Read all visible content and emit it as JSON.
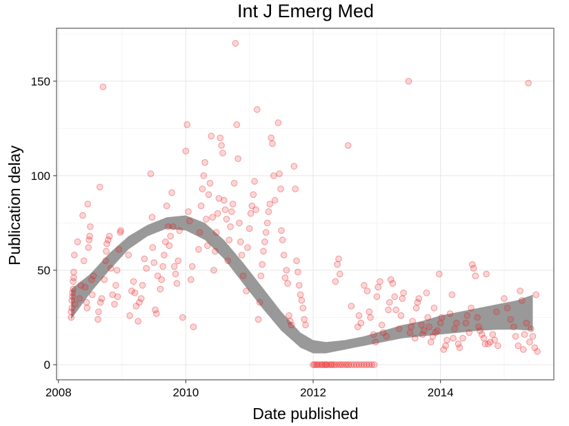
{
  "chart_data": {
    "type": "scatter",
    "title": "Int J Emerg Med",
    "xlabel": "Date published",
    "ylabel": "Publication delay",
    "xlim": [
      2007.97,
      2015.78
    ],
    "ylim": [
      -8,
      178
    ],
    "xticks": [
      2008,
      2010,
      2012,
      2014
    ],
    "xtick_labels": [
      "2008",
      "2010",
      "2012",
      "2014"
    ],
    "yticks": [
      0,
      50,
      100,
      150
    ],
    "ytick_labels": [
      "0",
      "50",
      "100",
      "150"
    ],
    "grid": true,
    "point_color": "#e8191c",
    "point_opacity": 0.18,
    "band_color": "#999999",
    "points": [
      [
        2008.2,
        25
      ],
      [
        2008.2,
        28
      ],
      [
        2008.21,
        30
      ],
      [
        2008.21,
        34
      ],
      [
        2008.22,
        36
      ],
      [
        2008.22,
        38
      ],
      [
        2008.23,
        40
      ],
      [
        2008.23,
        44
      ],
      [
        2008.24,
        46
      ],
      [
        2008.24,
        49
      ],
      [
        2008.25,
        58
      ],
      [
        2008.26,
        32
      ],
      [
        2008.3,
        65
      ],
      [
        2008.33,
        35
      ],
      [
        2008.35,
        42
      ],
      [
        2008.38,
        79
      ],
      [
        2008.4,
        55
      ],
      [
        2008.42,
        41
      ],
      [
        2008.44,
        33
      ],
      [
        2008.45,
        30
      ],
      [
        2008.46,
        85
      ],
      [
        2008.47,
        62
      ],
      [
        2008.48,
        66
      ],
      [
        2008.49,
        68
      ],
      [
        2008.5,
        73
      ],
      [
        2008.52,
        45
      ],
      [
        2008.53,
        37
      ],
      [
        2008.55,
        47
      ],
      [
        2008.62,
        24
      ],
      [
        2008.63,
        28
      ],
      [
        2008.65,
        94
      ],
      [
        2008.66,
        33
      ],
      [
        2008.68,
        35
      ],
      [
        2008.7,
        147
      ],
      [
        2008.72,
        45
      ],
      [
        2008.74,
        55
      ],
      [
        2008.75,
        60
      ],
      [
        2008.76,
        64
      ],
      [
        2008.78,
        66
      ],
      [
        2008.8,
        68
      ],
      [
        2008.82,
        51
      ],
      [
        2008.85,
        37
      ],
      [
        2008.88,
        32
      ],
      [
        2008.9,
        42
      ],
      [
        2008.92,
        50
      ],
      [
        2008.93,
        36
      ],
      [
        2008.95,
        61
      ],
      [
        2008.97,
        70
      ],
      [
        2008.98,
        71
      ],
      [
        2009.1,
        58
      ],
      [
        2009.12,
        26
      ],
      [
        2009.15,
        39
      ],
      [
        2009.18,
        44
      ],
      [
        2009.2,
        38
      ],
      [
        2009.22,
        31
      ],
      [
        2009.25,
        23
      ],
      [
        2009.27,
        33
      ],
      [
        2009.3,
        35
      ],
      [
        2009.32,
        42
      ],
      [
        2009.35,
        56
      ],
      [
        2009.38,
        51
      ],
      [
        2009.45,
        101
      ],
      [
        2009.47,
        78
      ],
      [
        2009.48,
        62
      ],
      [
        2009.5,
        54
      ],
      [
        2009.52,
        29
      ],
      [
        2009.54,
        27
      ],
      [
        2009.56,
        47
      ],
      [
        2009.6,
        40
      ],
      [
        2009.62,
        45
      ],
      [
        2009.64,
        52
      ],
      [
        2009.66,
        58
      ],
      [
        2009.68,
        65
      ],
      [
        2009.7,
        84
      ],
      [
        2009.72,
        73
      ],
      [
        2009.74,
        63
      ],
      [
        2009.76,
        68
      ],
      [
        2009.78,
        91
      ],
      [
        2009.8,
        73
      ],
      [
        2009.82,
        52
      ],
      [
        2009.84,
        48
      ],
      [
        2009.86,
        43
      ],
      [
        2009.88,
        55
      ],
      [
        2009.9,
        71
      ],
      [
        2009.95,
        25
      ],
      [
        2010.0,
        113
      ],
      [
        2010.02,
        127
      ],
      [
        2010.04,
        81
      ],
      [
        2010.06,
        76
      ],
      [
        2010.08,
        45
      ],
      [
        2010.1,
        52
      ],
      [
        2010.12,
        20
      ],
      [
        2010.2,
        61
      ],
      [
        2010.22,
        70
      ],
      [
        2010.24,
        84
      ],
      [
        2010.26,
        93
      ],
      [
        2010.28,
        100
      ],
      [
        2010.3,
        107
      ],
      [
        2010.32,
        77
      ],
      [
        2010.34,
        63
      ],
      [
        2010.36,
        90
      ],
      [
        2010.38,
        96
      ],
      [
        2010.4,
        121
      ],
      [
        2010.42,
        78
      ],
      [
        2010.44,
        50
      ],
      [
        2010.46,
        60
      ],
      [
        2010.48,
        70
      ],
      [
        2010.5,
        80
      ],
      [
        2010.52,
        88
      ],
      [
        2010.54,
        120
      ],
      [
        2010.56,
        116
      ],
      [
        2010.58,
        112
      ],
      [
        2010.6,
        87
      ],
      [
        2010.62,
        82
      ],
      [
        2010.64,
        77
      ],
      [
        2010.66,
        55
      ],
      [
        2010.68,
        66
      ],
      [
        2010.7,
        73
      ],
      [
        2010.72,
        81
      ],
      [
        2010.74,
        85
      ],
      [
        2010.76,
        96
      ],
      [
        2010.78,
        170
      ],
      [
        2010.8,
        127
      ],
      [
        2010.82,
        109
      ],
      [
        2010.84,
        75
      ],
      [
        2010.86,
        65
      ],
      [
        2010.88,
        58
      ],
      [
        2010.9,
        47
      ],
      [
        2010.95,
        39
      ],
      [
        2010.97,
        62
      ],
      [
        2011.0,
        72
      ],
      [
        2011.02,
        80
      ],
      [
        2011.04,
        84
      ],
      [
        2011.06,
        90
      ],
      [
        2011.08,
        97
      ],
      [
        2011.1,
        82
      ],
      [
        2011.12,
        135
      ],
      [
        2011.14,
        24
      ],
      [
        2011.16,
        33
      ],
      [
        2011.18,
        47
      ],
      [
        2011.2,
        53
      ],
      [
        2011.22,
        60
      ],
      [
        2011.24,
        65
      ],
      [
        2011.26,
        70
      ],
      [
        2011.28,
        75
      ],
      [
        2011.3,
        81
      ],
      [
        2011.32,
        85
      ],
      [
        2011.34,
        120
      ],
      [
        2011.36,
        117
      ],
      [
        2011.38,
        100
      ],
      [
        2011.4,
        87
      ],
      [
        2011.45,
        128
      ],
      [
        2011.47,
        101
      ],
      [
        2011.49,
        93
      ],
      [
        2011.5,
        71
      ],
      [
        2011.52,
        66
      ],
      [
        2011.54,
        58
      ],
      [
        2011.56,
        46
      ],
      [
        2011.58,
        50
      ],
      [
        2011.6,
        43
      ],
      [
        2011.62,
        26
      ],
      [
        2011.64,
        23
      ],
      [
        2011.66,
        21
      ],
      [
        2011.7,
        105
      ],
      [
        2011.72,
        93
      ],
      [
        2011.74,
        55
      ],
      [
        2011.76,
        49
      ],
      [
        2011.78,
        42
      ],
      [
        2011.8,
        37
      ],
      [
        2011.82,
        34
      ],
      [
        2011.84,
        30
      ],
      [
        2011.86,
        24
      ],
      [
        2011.88,
        21
      ],
      [
        2012.0,
        0
      ],
      [
        2012.02,
        0
      ],
      [
        2012.05,
        0
      ],
      [
        2012.07,
        0
      ],
      [
        2012.1,
        0
      ],
      [
        2012.13,
        0
      ],
      [
        2012.15,
        0
      ],
      [
        2012.18,
        0
      ],
      [
        2012.2,
        0
      ],
      [
        2012.22,
        0
      ],
      [
        2012.25,
        0
      ],
      [
        2012.28,
        0
      ],
      [
        2012.3,
        0
      ],
      [
        2012.33,
        0
      ],
      [
        2012.36,
        0
      ],
      [
        2012.4,
        0
      ],
      [
        2012.43,
        0
      ],
      [
        2012.46,
        0
      ],
      [
        2012.5,
        0
      ],
      [
        2012.53,
        0
      ],
      [
        2012.56,
        0
      ],
      [
        2012.6,
        0
      ],
      [
        2012.64,
        0
      ],
      [
        2012.68,
        0
      ],
      [
        2012.72,
        0
      ],
      [
        2012.76,
        0
      ],
      [
        2012.8,
        0
      ],
      [
        2012.84,
        0
      ],
      [
        2012.88,
        0
      ],
      [
        2012.92,
        0
      ],
      [
        2012.96,
        0
      ],
      [
        2012.35,
        44
      ],
      [
        2012.38,
        53
      ],
      [
        2012.4,
        56
      ],
      [
        2012.42,
        48
      ],
      [
        2012.55,
        116
      ],
      [
        2012.6,
        31
      ],
      [
        2012.7,
        20
      ],
      [
        2012.72,
        26
      ],
      [
        2012.75,
        22
      ],
      [
        2012.8,
        42
      ],
      [
        2012.85,
        39
      ],
      [
        2012.88,
        28
      ],
      [
        2012.9,
        25
      ],
      [
        2012.95,
        16
      ],
      [
        2012.98,
        12
      ],
      [
        2013.0,
        36
      ],
      [
        2013.02,
        41
      ],
      [
        2013.05,
        44
      ],
      [
        2013.08,
        21
      ],
      [
        2013.1,
        17
      ],
      [
        2013.15,
        15
      ],
      [
        2013.18,
        29
      ],
      [
        2013.2,
        33
      ],
      [
        2013.22,
        45
      ],
      [
        2013.25,
        43
      ],
      [
        2013.28,
        36
      ],
      [
        2013.3,
        29
      ],
      [
        2013.35,
        19
      ],
      [
        2013.38,
        26
      ],
      [
        2013.4,
        35
      ],
      [
        2013.42,
        38
      ],
      [
        2013.5,
        150
      ],
      [
        2013.52,
        17
      ],
      [
        2013.54,
        20
      ],
      [
        2013.56,
        23
      ],
      [
        2013.6,
        14
      ],
      [
        2013.62,
        30
      ],
      [
        2013.64,
        33
      ],
      [
        2013.66,
        35
      ],
      [
        2013.7,
        21
      ],
      [
        2013.72,
        16
      ],
      [
        2013.74,
        18
      ],
      [
        2013.78,
        38
      ],
      [
        2013.8,
        25
      ],
      [
        2013.82,
        20
      ],
      [
        2013.85,
        12
      ],
      [
        2013.88,
        15
      ],
      [
        2013.9,
        30
      ],
      [
        2013.92,
        17
      ],
      [
        2013.95,
        18
      ],
      [
        2013.98,
        48
      ],
      [
        2014.0,
        22
      ],
      [
        2014.02,
        25
      ],
      [
        2014.05,
        8
      ],
      [
        2014.08,
        10
      ],
      [
        2014.1,
        13
      ],
      [
        2014.15,
        27
      ],
      [
        2014.18,
        37
      ],
      [
        2014.2,
        14
      ],
      [
        2014.22,
        19
      ],
      [
        2014.25,
        22
      ],
      [
        2014.28,
        11
      ],
      [
        2014.3,
        9
      ],
      [
        2014.35,
        14
      ],
      [
        2014.4,
        22
      ],
      [
        2014.42,
        26
      ],
      [
        2014.45,
        17
      ],
      [
        2014.48,
        30
      ],
      [
        2014.5,
        53
      ],
      [
        2014.52,
        51
      ],
      [
        2014.55,
        47
      ],
      [
        2014.58,
        25
      ],
      [
        2014.6,
        20
      ],
      [
        2014.62,
        18
      ],
      [
        2014.65,
        16
      ],
      [
        2014.68,
        14
      ],
      [
        2014.7,
        11
      ],
      [
        2014.72,
        48
      ],
      [
        2014.75,
        11
      ],
      [
        2014.78,
        12
      ],
      [
        2014.82,
        16
      ],
      [
        2014.85,
        13
      ],
      [
        2014.88,
        28
      ],
      [
        2014.9,
        10
      ],
      [
        2015.0,
        35
      ],
      [
        2015.05,
        30
      ],
      [
        2015.1,
        24
      ],
      [
        2015.15,
        20
      ],
      [
        2015.18,
        15
      ],
      [
        2015.22,
        10
      ],
      [
        2015.25,
        39
      ],
      [
        2015.28,
        34
      ],
      [
        2015.3,
        8
      ],
      [
        2015.32,
        16
      ],
      [
        2015.35,
        22
      ],
      [
        2015.38,
        149
      ],
      [
        2015.4,
        12
      ],
      [
        2015.42,
        19
      ],
      [
        2015.45,
        15
      ],
      [
        2015.48,
        9
      ],
      [
        2015.5,
        37
      ],
      [
        2015.52,
        7
      ]
    ],
    "smooth_band": {
      "x": [
        2008.2,
        2008.5,
        2008.8,
        2009.1,
        2009.4,
        2009.7,
        2010.0,
        2010.3,
        2010.6,
        2010.9,
        2011.2,
        2011.5,
        2011.8,
        2012.0,
        2012.2,
        2012.5,
        2012.8,
        2013.1,
        2013.4,
        2013.7,
        2014.0,
        2014.3,
        2014.6,
        2014.9,
        2015.2,
        2015.45
      ],
      "lower": [
        24,
        38,
        50,
        61,
        68,
        72,
        71,
        66,
        56,
        43,
        30,
        18,
        9,
        6,
        6,
        8,
        10,
        12,
        14,
        15,
        16,
        17,
        18,
        18.5,
        18.5,
        18
      ],
      "upper": [
        40,
        48,
        59,
        68,
        74,
        78,
        79,
        75,
        66,
        54,
        41,
        28,
        17,
        13,
        12,
        13,
        15,
        18,
        21,
        23,
        26,
        28,
        30,
        32,
        34,
        37
      ]
    }
  }
}
